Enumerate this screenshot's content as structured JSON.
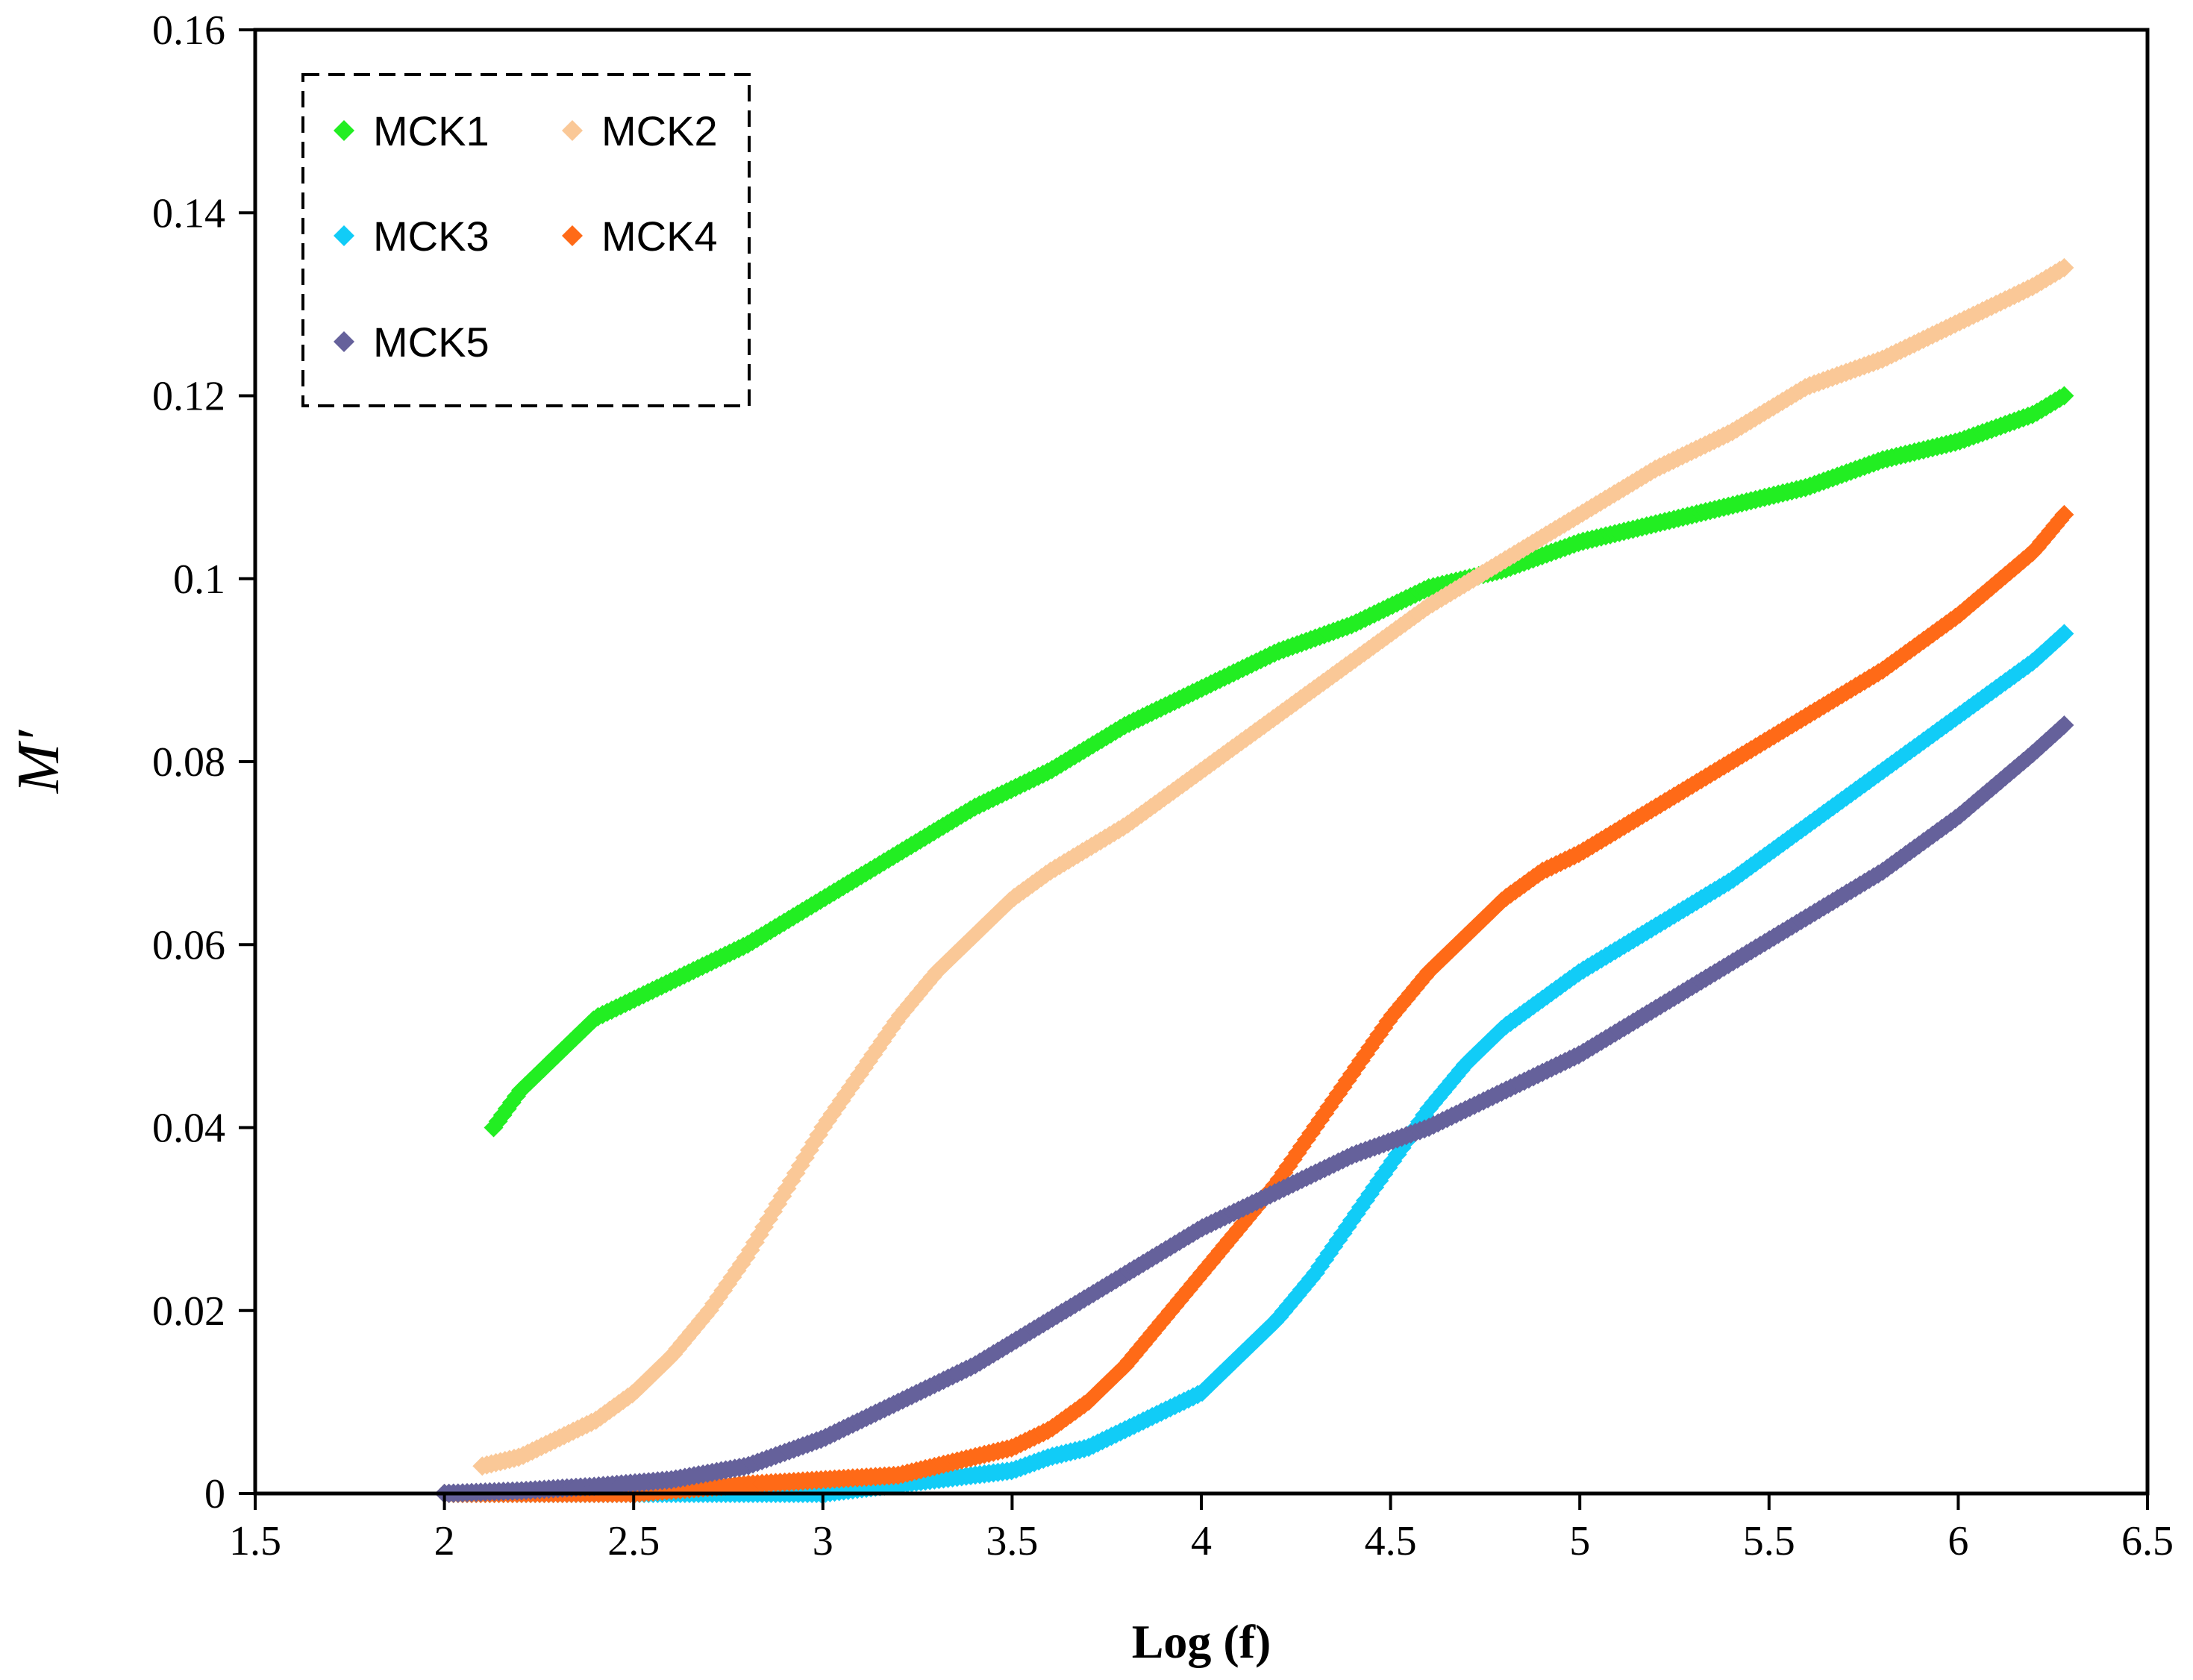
{
  "chart_data": {
    "type": "scatter",
    "title": "",
    "xlabel": "Log (f)",
    "ylabel": "M′",
    "xlim": [
      1.5,
      6.5
    ],
    "ylim": [
      0,
      0.16
    ],
    "xticks": [
      "1.5",
      "2",
      "2.5",
      "3",
      "3.5",
      "4",
      "4.5",
      "5",
      "5.5",
      "6",
      "6.5"
    ],
    "yticks": [
      "0",
      "0.02",
      "0.04",
      "0.06",
      "0.08",
      "0.1",
      "0.12",
      "0.14",
      "0.16"
    ],
    "grid": false,
    "legend_position": "top-left",
    "series": [
      {
        "name": "MCK1",
        "color": "#22ee22",
        "points": [
          [
            2.13,
            0.04
          ],
          [
            2.2,
            0.044
          ],
          [
            2.3,
            0.048
          ],
          [
            2.4,
            0.052
          ],
          [
            2.5,
            0.054
          ],
          [
            2.6,
            0.056
          ],
          [
            2.8,
            0.06
          ],
          [
            3.0,
            0.065
          ],
          [
            3.2,
            0.07
          ],
          [
            3.4,
            0.075
          ],
          [
            3.6,
            0.079
          ],
          [
            3.8,
            0.084
          ],
          [
            4.0,
            0.088
          ],
          [
            4.2,
            0.092
          ],
          [
            4.4,
            0.095
          ],
          [
            4.6,
            0.099
          ],
          [
            4.8,
            0.101
          ],
          [
            5.0,
            0.104
          ],
          [
            5.2,
            0.106
          ],
          [
            5.4,
            0.108
          ],
          [
            5.6,
            0.11
          ],
          [
            5.8,
            0.113
          ],
          [
            6.0,
            0.115
          ],
          [
            6.2,
            0.118
          ],
          [
            6.28,
            0.12
          ]
        ]
      },
      {
        "name": "MCK2",
        "color": "#fac897",
        "points": [
          [
            2.1,
            0.003
          ],
          [
            2.2,
            0.004
          ],
          [
            2.3,
            0.006
          ],
          [
            2.4,
            0.008
          ],
          [
            2.5,
            0.011
          ],
          [
            2.6,
            0.015
          ],
          [
            2.7,
            0.02
          ],
          [
            2.8,
            0.026
          ],
          [
            2.9,
            0.033
          ],
          [
            3.0,
            0.04
          ],
          [
            3.1,
            0.046
          ],
          [
            3.2,
            0.052
          ],
          [
            3.3,
            0.057
          ],
          [
            3.4,
            0.061
          ],
          [
            3.5,
            0.065
          ],
          [
            3.6,
            0.068
          ],
          [
            3.8,
            0.073
          ],
          [
            4.0,
            0.079
          ],
          [
            4.2,
            0.085
          ],
          [
            4.4,
            0.091
          ],
          [
            4.6,
            0.097
          ],
          [
            4.8,
            0.102
          ],
          [
            5.0,
            0.107
          ],
          [
            5.2,
            0.112
          ],
          [
            5.4,
            0.116
          ],
          [
            5.6,
            0.121
          ],
          [
            5.8,
            0.124
          ],
          [
            6.0,
            0.128
          ],
          [
            6.2,
            0.132
          ],
          [
            6.28,
            0.134
          ]
        ]
      },
      {
        "name": "MCK3",
        "color": "#11ccf7",
        "points": [
          [
            2.0,
            0.0
          ],
          [
            2.5,
            0.0
          ],
          [
            3.0,
            0.0
          ],
          [
            3.2,
            0.001
          ],
          [
            3.4,
            0.002
          ],
          [
            3.5,
            0.0025
          ],
          [
            3.6,
            0.004
          ],
          [
            3.7,
            0.005
          ],
          [
            3.8,
            0.007
          ],
          [
            3.9,
            0.009
          ],
          [
            4.0,
            0.011
          ],
          [
            4.1,
            0.015
          ],
          [
            4.2,
            0.019
          ],
          [
            4.3,
            0.024
          ],
          [
            4.4,
            0.03
          ],
          [
            4.5,
            0.036
          ],
          [
            4.6,
            0.042
          ],
          [
            4.7,
            0.047
          ],
          [
            4.8,
            0.051
          ],
          [
            4.9,
            0.054
          ],
          [
            5.0,
            0.057
          ],
          [
            5.2,
            0.062
          ],
          [
            5.4,
            0.067
          ],
          [
            5.6,
            0.073
          ],
          [
            5.8,
            0.079
          ],
          [
            6.0,
            0.085
          ],
          [
            6.2,
            0.091
          ],
          [
            6.28,
            0.094
          ]
        ]
      },
      {
        "name": "MCK4",
        "color": "#ff6a17",
        "points": [
          [
            2.0,
            0.0
          ],
          [
            2.5,
            0.0
          ],
          [
            2.8,
            0.001
          ],
          [
            3.0,
            0.0015
          ],
          [
            3.2,
            0.002
          ],
          [
            3.4,
            0.004
          ],
          [
            3.5,
            0.005
          ],
          [
            3.6,
            0.007
          ],
          [
            3.7,
            0.01
          ],
          [
            3.8,
            0.014
          ],
          [
            3.9,
            0.019
          ],
          [
            4.0,
            0.024
          ],
          [
            4.1,
            0.029
          ],
          [
            4.2,
            0.034
          ],
          [
            4.3,
            0.04
          ],
          [
            4.4,
            0.046
          ],
          [
            4.5,
            0.052
          ],
          [
            4.6,
            0.057
          ],
          [
            4.7,
            0.061
          ],
          [
            4.8,
            0.065
          ],
          [
            4.9,
            0.068
          ],
          [
            5.0,
            0.07
          ],
          [
            5.2,
            0.075
          ],
          [
            5.4,
            0.08
          ],
          [
            5.6,
            0.085
          ],
          [
            5.8,
            0.09
          ],
          [
            6.0,
            0.096
          ],
          [
            6.2,
            0.103
          ],
          [
            6.28,
            0.107
          ]
        ]
      },
      {
        "name": "MCK5",
        "color": "#65619b",
        "points": [
          [
            2.0,
            0.0
          ],
          [
            2.2,
            0.0003
          ],
          [
            2.4,
            0.0008
          ],
          [
            2.6,
            0.0015
          ],
          [
            2.8,
            0.003
          ],
          [
            3.0,
            0.006
          ],
          [
            3.2,
            0.01
          ],
          [
            3.4,
            0.014
          ],
          [
            3.6,
            0.019
          ],
          [
            3.8,
            0.024
          ],
          [
            4.0,
            0.029
          ],
          [
            4.2,
            0.033
          ],
          [
            4.4,
            0.037
          ],
          [
            4.6,
            0.04
          ],
          [
            4.8,
            0.044
          ],
          [
            5.0,
            0.048
          ],
          [
            5.2,
            0.053
          ],
          [
            5.4,
            0.058
          ],
          [
            5.6,
            0.063
          ],
          [
            5.8,
            0.068
          ],
          [
            6.0,
            0.074
          ],
          [
            6.2,
            0.081
          ],
          [
            6.28,
            0.084
          ]
        ]
      }
    ]
  }
}
